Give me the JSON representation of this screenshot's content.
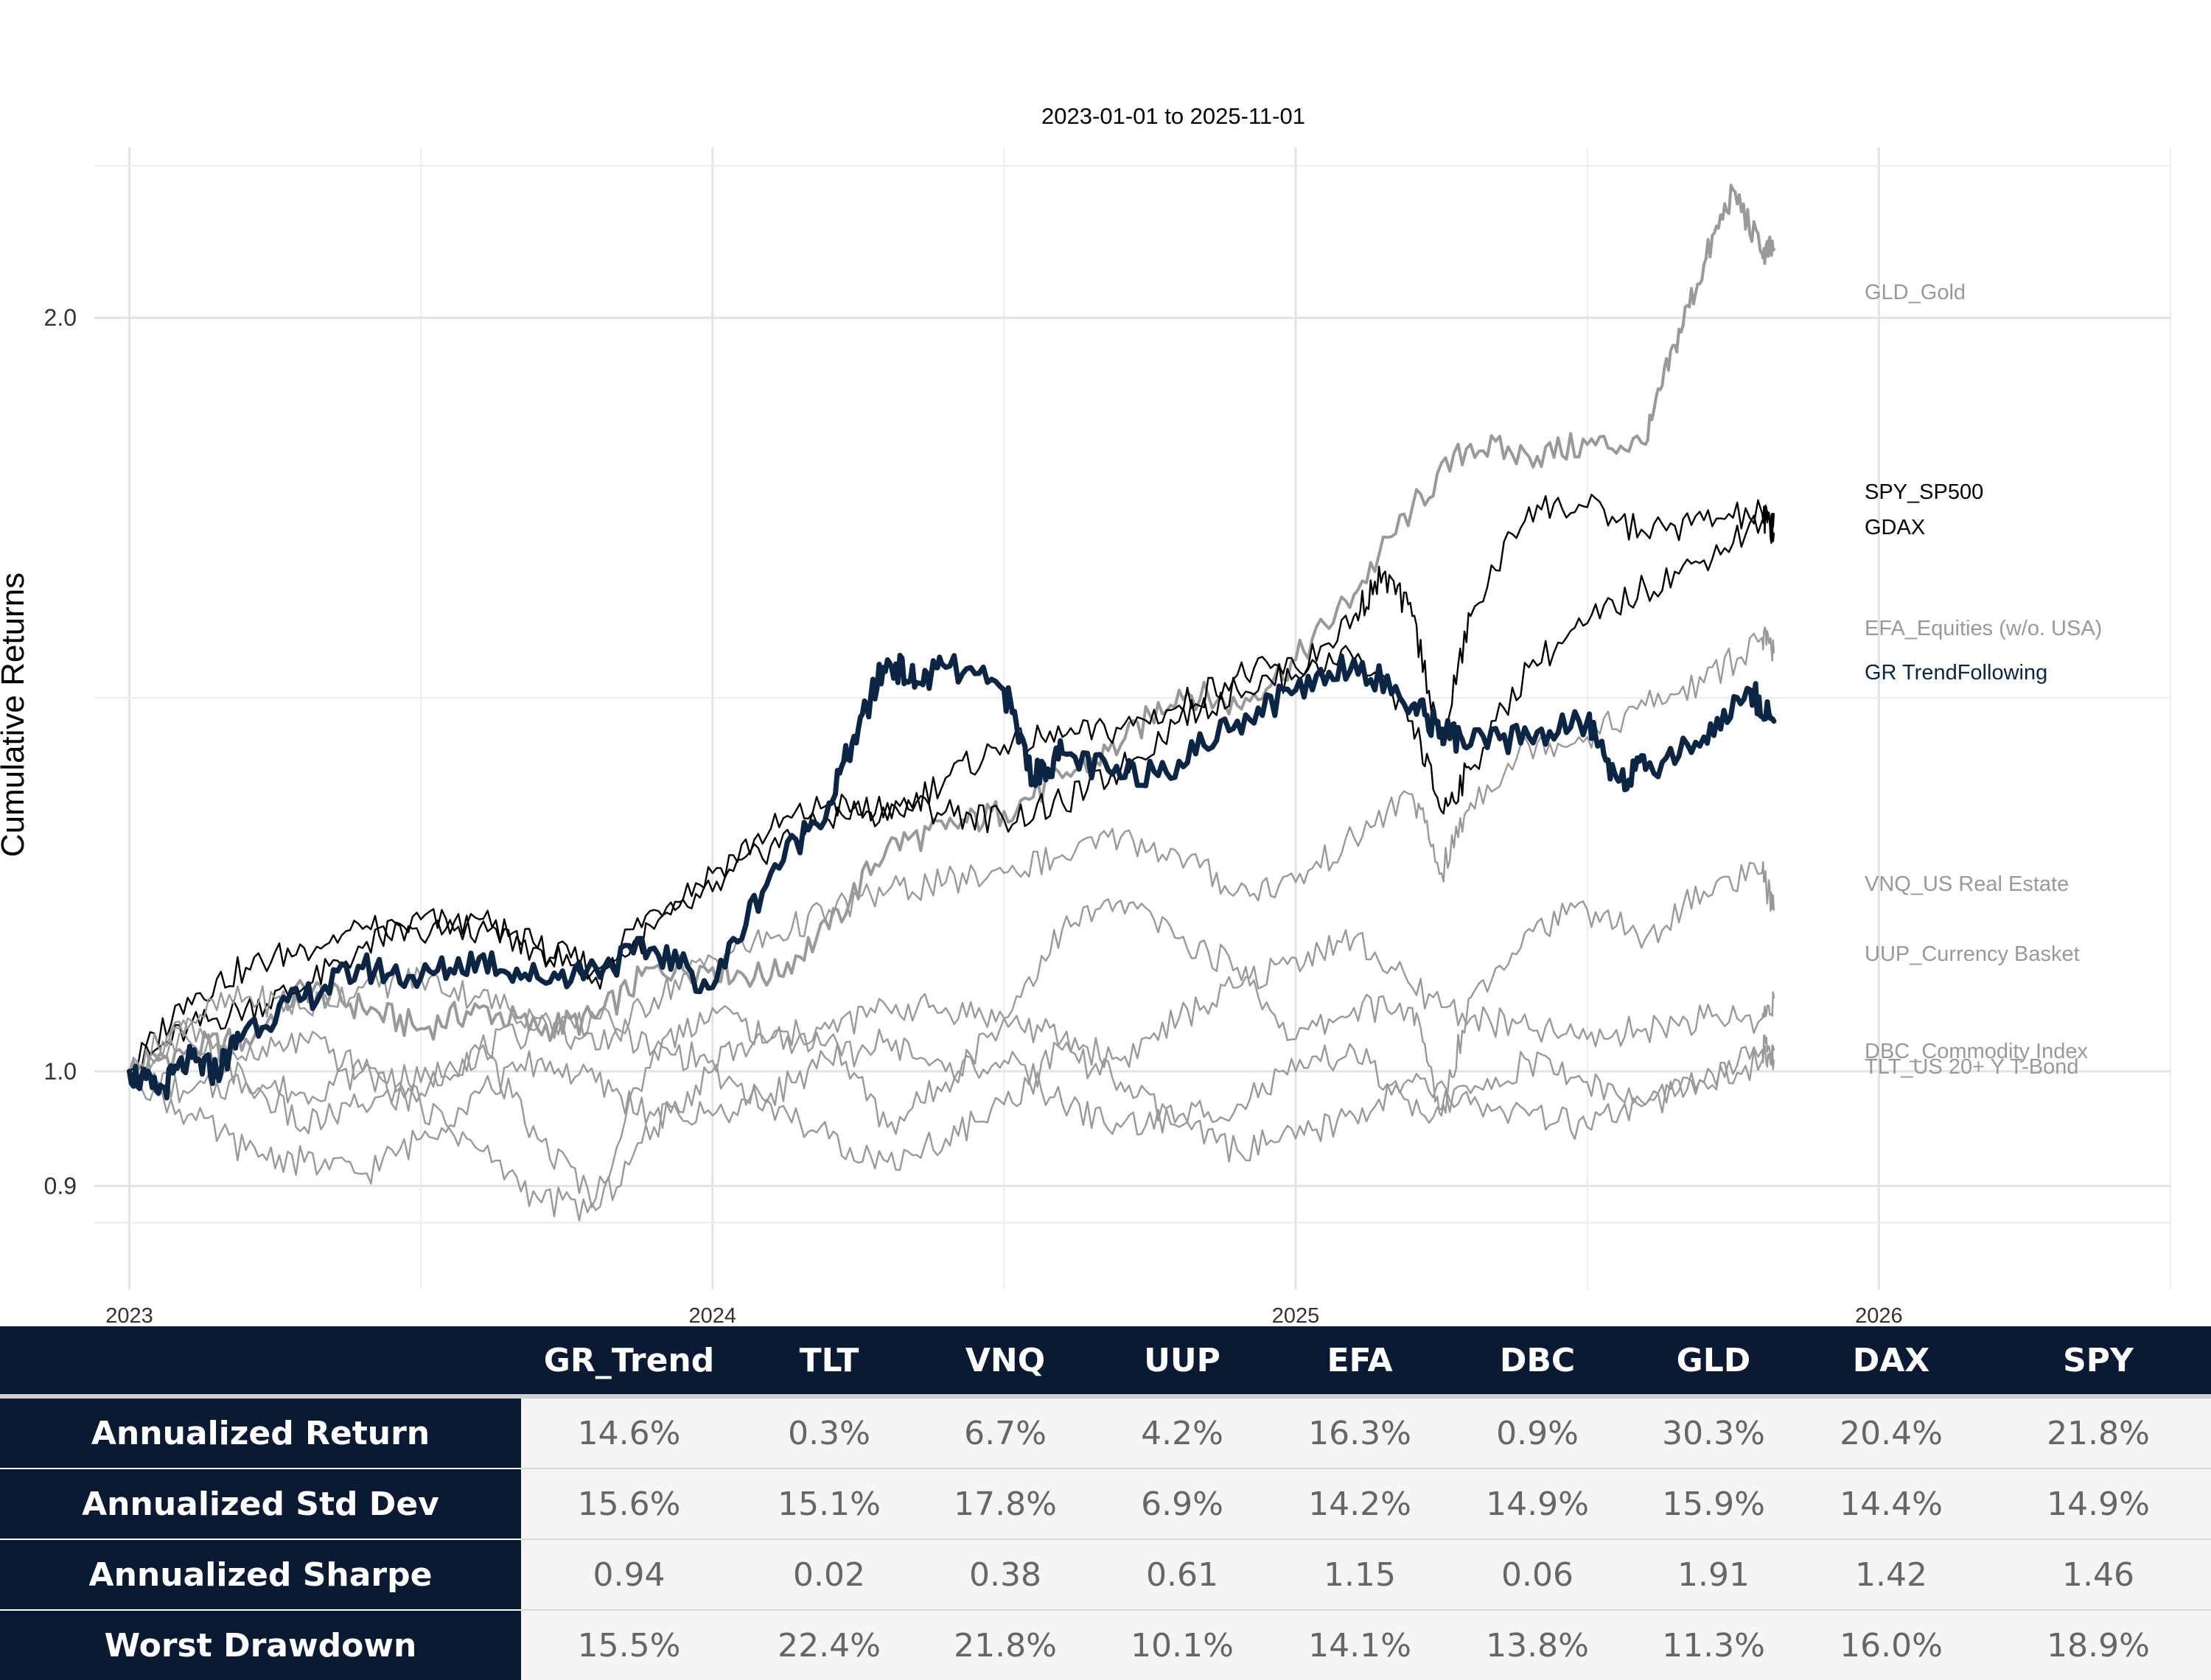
{
  "chart_data": {
    "type": "line",
    "title": "2023-01-01 to 2025-11-01",
    "ylabel": "Cumulative Returns",
    "xlabel": "",
    "y_scale": "log",
    "ylim": [
      0.855,
      2.3
    ],
    "xlim": [
      2022.94,
      2026.5
    ],
    "x_ticks": [
      {
        "value": 2023,
        "label": "2023"
      },
      {
        "value": 2024,
        "label": "2024"
      },
      {
        "value": 2025,
        "label": "2025"
      },
      {
        "value": 2026,
        "label": "2026"
      }
    ],
    "y_ticks": [
      {
        "value": 0.9,
        "label": "0.9"
      },
      {
        "value": 1.0,
        "label": "1.0"
      },
      {
        "value": 2.0,
        "label": "2.0"
      }
    ],
    "y_minor_gridlines": [
      0.87,
      1.41
    ],
    "grid": true,
    "series": [
      {
        "name": "GLD_Gold",
        "color": "#999999",
        "emphasis": "medium",
        "x": [
          2023.0,
          2023.1,
          2023.2,
          2023.3,
          2023.4,
          2023.5,
          2023.6,
          2023.7,
          2023.8,
          2023.9,
          2024.0,
          2024.1,
          2024.2,
          2024.3,
          2024.4,
          2024.5,
          2024.6,
          2024.7,
          2024.8,
          2024.9,
          2025.0,
          2025.1,
          2025.2,
          2025.3,
          2025.4,
          2025.5,
          2025.6,
          2025.65,
          2025.7,
          2025.75,
          2025.8,
          2025.82
        ],
        "y": [
          1.0,
          1.02,
          1.03,
          1.08,
          1.06,
          1.04,
          1.06,
          1.04,
          1.05,
          1.1,
          1.1,
          1.09,
          1.14,
          1.23,
          1.25,
          1.27,
          1.31,
          1.35,
          1.42,
          1.4,
          1.46,
          1.55,
          1.68,
          1.78,
          1.76,
          1.78,
          1.78,
          1.95,
          2.1,
          2.25,
          2.12,
          2.13
        ]
      },
      {
        "name": "SPY_SP500",
        "color": "#000000",
        "emphasis": "thin",
        "x": [
          2023.0,
          2023.1,
          2023.2,
          2023.3,
          2023.4,
          2023.5,
          2023.6,
          2023.7,
          2023.8,
          2023.9,
          2024.0,
          2024.1,
          2024.2,
          2024.3,
          2024.4,
          2024.5,
          2024.6,
          2024.7,
          2024.8,
          2024.9,
          2025.0,
          2025.1,
          2025.2,
          2025.25,
          2025.3,
          2025.4,
          2025.5,
          2025.6,
          2025.7,
          2025.8,
          2025.82
        ],
        "y": [
          1.0,
          1.04,
          1.06,
          1.08,
          1.12,
          1.15,
          1.14,
          1.12,
          1.1,
          1.16,
          1.2,
          1.25,
          1.28,
          1.26,
          1.31,
          1.35,
          1.36,
          1.37,
          1.4,
          1.44,
          1.45,
          1.46,
          1.38,
          1.27,
          1.32,
          1.45,
          1.51,
          1.56,
          1.6,
          1.66,
          1.67
        ]
      },
      {
        "name": "GDAX",
        "color": "#000000",
        "emphasis": "thin",
        "x": [
          2023.0,
          2023.1,
          2023.2,
          2023.3,
          2023.4,
          2023.5,
          2023.6,
          2023.7,
          2023.8,
          2023.9,
          2024.0,
          2024.1,
          2024.2,
          2024.3,
          2024.4,
          2024.5,
          2024.6,
          2024.7,
          2024.8,
          2024.9,
          2025.0,
          2025.1,
          2025.15,
          2025.2,
          2025.25,
          2025.3,
          2025.4,
          2025.5,
          2025.6,
          2025.7,
          2025.8,
          2025.82
        ],
        "y": [
          1.0,
          1.07,
          1.1,
          1.12,
          1.14,
          1.13,
          1.15,
          1.12,
          1.09,
          1.14,
          1.18,
          1.23,
          1.26,
          1.28,
          1.27,
          1.26,
          1.28,
          1.32,
          1.38,
          1.42,
          1.44,
          1.52,
          1.58,
          1.52,
          1.35,
          1.52,
          1.68,
          1.68,
          1.64,
          1.66,
          1.67,
          1.64
        ]
      },
      {
        "name": "EFA_Equities (w/o. USA)",
        "color": "#999999",
        "emphasis": "thin",
        "x": [
          2023.0,
          2023.1,
          2023.2,
          2023.3,
          2023.4,
          2023.5,
          2023.6,
          2023.7,
          2023.8,
          2023.9,
          2024.0,
          2024.1,
          2024.2,
          2024.3,
          2024.4,
          2024.5,
          2024.6,
          2024.7,
          2024.8,
          2024.9,
          2025.0,
          2025.1,
          2025.2,
          2025.25,
          2025.3,
          2025.4,
          2025.5,
          2025.6,
          2025.7,
          2025.8,
          2025.82
        ],
        "y": [
          1.0,
          1.05,
          1.07,
          1.06,
          1.08,
          1.09,
          1.07,
          1.05,
          1.02,
          1.07,
          1.11,
          1.13,
          1.16,
          1.18,
          1.19,
          1.2,
          1.22,
          1.24,
          1.22,
          1.18,
          1.19,
          1.24,
          1.29,
          1.2,
          1.28,
          1.35,
          1.36,
          1.4,
          1.43,
          1.49,
          1.47
        ]
      },
      {
        "name": "GR TrendFollowing",
        "color": "#0b2545",
        "emphasis": "thick",
        "x": [
          2023.0,
          2023.05,
          2023.1,
          2023.15,
          2023.2,
          2023.3,
          2023.4,
          2023.5,
          2023.6,
          2023.7,
          2023.8,
          2023.9,
          2024.0,
          2024.1,
          2024.2,
          2024.25,
          2024.3,
          2024.35,
          2024.4,
          2024.5,
          2024.55,
          2024.6,
          2024.7,
          2024.8,
          2024.9,
          2025.0,
          2025.1,
          2025.2,
          2025.25,
          2025.3,
          2025.4,
          2025.5,
          2025.55,
          2025.6,
          2025.7,
          2025.78,
          2025.82
        ],
        "y": [
          1.0,
          0.98,
          1.01,
          1.0,
          1.04,
          1.07,
          1.1,
          1.09,
          1.11,
          1.09,
          1.1,
          1.12,
          1.08,
          1.2,
          1.28,
          1.37,
          1.46,
          1.43,
          1.45,
          1.42,
          1.31,
          1.34,
          1.31,
          1.33,
          1.38,
          1.42,
          1.46,
          1.4,
          1.37,
          1.35,
          1.36,
          1.38,
          1.31,
          1.32,
          1.36,
          1.42,
          1.38
        ]
      },
      {
        "name": "VNQ_US Real Estate",
        "color": "#999999",
        "emphasis": "thin",
        "x": [
          2023.0,
          2023.1,
          2023.2,
          2023.3,
          2023.4,
          2023.5,
          2023.6,
          2023.7,
          2023.8,
          2023.9,
          2024.0,
          2024.1,
          2024.2,
          2024.3,
          2024.4,
          2024.5,
          2024.6,
          2024.7,
          2024.8,
          2024.9,
          2025.0,
          2025.1,
          2025.2,
          2025.25,
          2025.3,
          2025.4,
          2025.5,
          2025.6,
          2025.7,
          2025.8,
          2025.82
        ],
        "y": [
          1.0,
          1.04,
          0.99,
          0.95,
          0.97,
          0.98,
          1.02,
          0.94,
          0.89,
          1.02,
          1.06,
          1.03,
          1.03,
          0.95,
          0.99,
          1.05,
          1.14,
          1.17,
          1.13,
          1.1,
          1.03,
          1.06,
          1.06,
          0.96,
          1.07,
          1.14,
          1.16,
          1.13,
          1.18,
          1.2,
          1.16
        ]
      },
      {
        "name": "UUP_Currency Basket",
        "color": "#999999",
        "emphasis": "thin",
        "x": [
          2023.0,
          2023.1,
          2023.2,
          2023.3,
          2023.4,
          2023.5,
          2023.6,
          2023.7,
          2023.8,
          2023.9,
          2024.0,
          2024.1,
          2024.2,
          2024.3,
          2024.4,
          2024.5,
          2024.6,
          2024.7,
          2024.8,
          2024.9,
          2025.0,
          2025.1,
          2025.2,
          2025.3,
          2025.4,
          2025.5,
          2025.6,
          2025.7,
          2025.8,
          2025.82
        ],
        "y": [
          1.0,
          0.98,
          0.99,
          0.98,
          1.0,
          0.99,
          1.02,
          1.04,
          1.05,
          1.02,
          1.01,
          1.03,
          1.04,
          1.06,
          1.06,
          1.05,
          1.03,
          1.01,
          1.05,
          1.08,
          1.11,
          1.13,
          1.08,
          1.05,
          1.04,
          1.03,
          1.04,
          1.05,
          1.05,
          1.07
        ]
      },
      {
        "name": "DBC_Commodity Index",
        "color": "#999999",
        "emphasis": "thin",
        "x": [
          2023.0,
          2023.1,
          2023.2,
          2023.3,
          2023.4,
          2023.5,
          2023.6,
          2023.7,
          2023.8,
          2023.9,
          2024.0,
          2024.1,
          2024.2,
          2024.3,
          2024.4,
          2024.5,
          2024.6,
          2024.7,
          2024.8,
          2024.9,
          2025.0,
          2025.1,
          2025.2,
          2025.3,
          2025.4,
          2025.5,
          2025.6,
          2025.7,
          2025.8,
          2025.82
        ],
        "y": [
          1.0,
          0.96,
          0.93,
          0.92,
          0.91,
          0.94,
          0.98,
          1.01,
          0.99,
          0.96,
          0.96,
          0.98,
          1.01,
          1.03,
          1.0,
          1.01,
          0.97,
          0.95,
          0.96,
          0.97,
          1.0,
          1.02,
          0.96,
          0.98,
          1.01,
          0.99,
          0.97,
          0.99,
          1.02,
          1.02
        ]
      },
      {
        "name": "TLT_US 20+ Y T-Bond",
        "color": "#999999",
        "emphasis": "thin",
        "x": [
          2023.0,
          2023.1,
          2023.2,
          2023.3,
          2023.4,
          2023.5,
          2023.6,
          2023.7,
          2023.8,
          2023.9,
          2024.0,
          2024.1,
          2024.2,
          2024.3,
          2024.4,
          2024.5,
          2024.6,
          2024.7,
          2024.8,
          2024.9,
          2025.0,
          2025.1,
          2025.2,
          2025.3,
          2025.4,
          2025.5,
          2025.6,
          2025.7,
          2025.8,
          2025.82
        ],
        "y": [
          1.0,
          1.03,
          1.01,
          1.03,
          1.0,
          0.97,
          0.93,
          0.89,
          0.88,
          0.95,
          1.0,
          0.97,
          0.94,
          0.92,
          0.94,
          0.97,
          1.02,
          0.99,
          0.95,
          0.93,
          0.94,
          0.96,
          0.99,
          0.97,
          0.96,
          0.95,
          0.97,
          0.99,
          1.01,
          1.01
        ]
      }
    ]
  },
  "table": {
    "columns": [
      "",
      "GR_Trend",
      "TLT",
      "VNQ",
      "UUP",
      "EFA",
      "DBC",
      "GLD",
      "DAX",
      "SPY"
    ],
    "rows": [
      {
        "label": "Annualized Return",
        "values": [
          "14.6%",
          "0.3%",
          "6.7%",
          "4.2%",
          "16.3%",
          "0.9%",
          "30.3%",
          "20.4%",
          "21.8%"
        ]
      },
      {
        "label": "Annualized Std Dev",
        "values": [
          "15.6%",
          "15.1%",
          "17.8%",
          "6.9%",
          "14.2%",
          "14.9%",
          "15.9%",
          "14.4%",
          "14.9%"
        ]
      },
      {
        "label": "Annualized Sharpe",
        "values": [
          "0.94",
          "0.02",
          "0.38",
          "0.61",
          "1.15",
          "0.06",
          "1.91",
          "1.42",
          "1.46"
        ]
      },
      {
        "label": "Worst Drawdown",
        "values": [
          "15.5%",
          "22.4%",
          "21.8%",
          "10.1%",
          "14.1%",
          "13.8%",
          "11.3%",
          "16.0%",
          "18.9%"
        ]
      }
    ]
  }
}
